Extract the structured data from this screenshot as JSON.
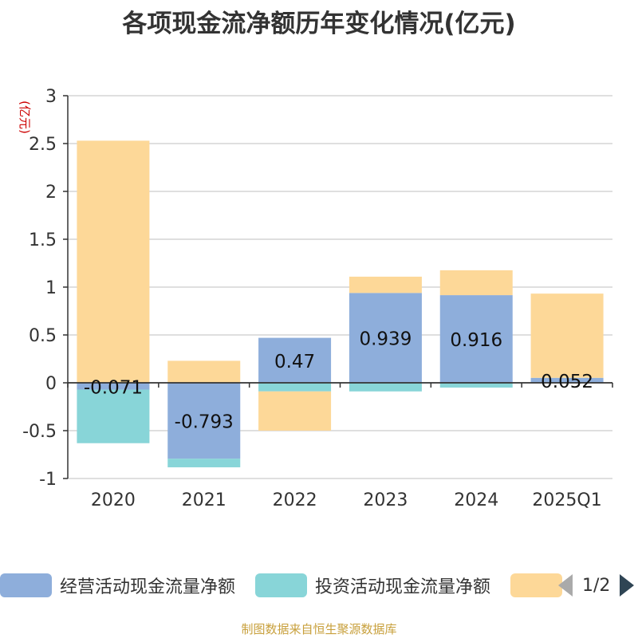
{
  "chart_data": {
    "type": "bar",
    "stacked": true,
    "title": "各项现金流净额历年变化情况(亿元)",
    "ylabel": "(亿元)",
    "categories": [
      "2020",
      "2021",
      "2022",
      "2023",
      "2024",
      "2025Q1"
    ],
    "ylim": [
      -1,
      3
    ],
    "yticks": [
      3,
      2.5,
      2,
      1.5,
      1,
      0.5,
      0,
      -0.5,
      -1
    ],
    "ytick_labels": [
      "3",
      "2.5",
      "2",
      "1.5",
      "1",
      "0.5",
      "0",
      "-0.5",
      "-1"
    ],
    "grid": true,
    "legend_position": "bottom",
    "series": [
      {
        "name": "经营活动现金流量净额",
        "color": "#8eaedb",
        "values": [
          -0.071,
          -0.793,
          0.47,
          0.939,
          0.916,
          0.052
        ],
        "data_labels": [
          "-0.071",
          "-0.793",
          "0.47",
          "0.939",
          "0.916",
          "0.052"
        ]
      },
      {
        "name": "投资活动现金流量净额",
        "color": "#88d5d8",
        "values": [
          -0.56,
          -0.09,
          -0.09,
          -0.09,
          -0.05,
          0
        ]
      },
      {
        "name": "",
        "color": "#fdd898",
        "values": [
          2.53,
          0.23,
          -0.41,
          0.17,
          0.26,
          0.88
        ]
      }
    ]
  },
  "legend": {
    "items": [
      {
        "label": "经营活动现金流量净额",
        "color": "#8eaedb"
      },
      {
        "label": "投资活动现金流量净额",
        "color": "#88d5d8"
      },
      {
        "label": "",
        "color": "#fdd898"
      }
    ],
    "page": "1/2"
  },
  "source_text": "制图数据来自恒生聚源数据库"
}
